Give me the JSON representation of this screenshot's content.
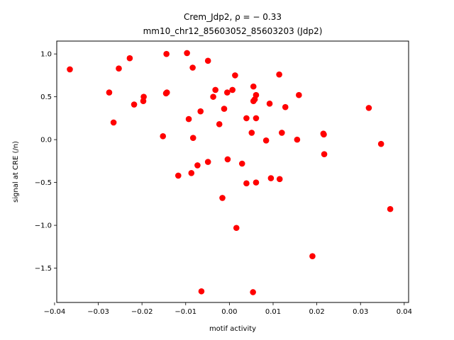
{
  "chart_data": {
    "type": "scatter",
    "title_line1": "Crem_Jdp2, ρ = − 0.33",
    "title_line2": "mm10_chr12_85603052_85603203 (Jdp2)",
    "xlabel": "motif activity",
    "ylabel": "signal at CRE (/n)",
    "xlim": [
      -0.0395,
      0.041
    ],
    "ylim": [
      -1.9,
      1.15
    ],
    "xticks": [
      -0.04,
      -0.03,
      -0.02,
      -0.01,
      0.0,
      0.01,
      0.02,
      0.03,
      0.04
    ],
    "xtick_labels": [
      "−0.04",
      "−0.03",
      "−0.02",
      "−0.01",
      "0.00",
      "0.01",
      "0.02",
      "0.03",
      "0.04"
    ],
    "yticks": [
      -1.5,
      -1.0,
      -0.5,
      0.0,
      0.5,
      1.0
    ],
    "ytick_labels": [
      "−1.5",
      "−1.0",
      "−0.5",
      "0.0",
      "0.5",
      "1.0"
    ],
    "marker_color": "#ff0000",
    "grid": false,
    "points": [
      [
        -0.0365,
        0.82
      ],
      [
        -0.0275,
        0.55
      ],
      [
        -0.0265,
        0.2
      ],
      [
        -0.0253,
        0.83
      ],
      [
        -0.0228,
        0.95
      ],
      [
        -0.0218,
        0.41
      ],
      [
        -0.0197,
        0.45
      ],
      [
        -0.0196,
        0.5
      ],
      [
        -0.0152,
        0.04
      ],
      [
        -0.0144,
        1.0
      ],
      [
        -0.0145,
        0.54
      ],
      [
        -0.0143,
        0.55
      ],
      [
        -0.0117,
        -0.42
      ],
      [
        -0.0097,
        1.01
      ],
      [
        -0.0093,
        0.24
      ],
      [
        -0.0087,
        -0.39
      ],
      [
        -0.0084,
        0.84
      ],
      [
        -0.0083,
        0.02
      ],
      [
        -0.0073,
        -0.3
      ],
      [
        -0.0066,
        0.33
      ],
      [
        -0.0064,
        -1.77
      ],
      [
        -0.0049,
        0.92
      ],
      [
        -0.0049,
        -0.26
      ],
      [
        -0.0037,
        0.5
      ],
      [
        -0.0032,
        0.58
      ],
      [
        -0.0023,
        0.18
      ],
      [
        -0.0016,
        -0.68
      ],
      [
        -0.0012,
        0.36
      ],
      [
        -0.0005,
        0.55
      ],
      [
        -0.0004,
        -0.23
      ],
      [
        0.0007,
        0.58
      ],
      [
        0.0013,
        0.75
      ],
      [
        0.0016,
        -1.03
      ],
      [
        0.0029,
        -0.28
      ],
      [
        0.0039,
        0.25
      ],
      [
        0.0039,
        -0.51
      ],
      [
        0.0051,
        0.08
      ],
      [
        0.0054,
        -1.78
      ],
      [
        0.0055,
        0.62
      ],
      [
        0.0055,
        0.45
      ],
      [
        0.0058,
        0.47
      ],
      [
        0.0061,
        0.52
      ],
      [
        0.0061,
        0.25
      ],
      [
        0.0061,
        -0.5
      ],
      [
        0.0084,
        -0.01
      ],
      [
        0.0092,
        0.42
      ],
      [
        0.0095,
        -0.45
      ],
      [
        0.0114,
        0.76
      ],
      [
        0.0115,
        -0.46
      ],
      [
        0.012,
        0.08
      ],
      [
        0.0128,
        0.38
      ],
      [
        0.0155,
        0.0
      ],
      [
        0.0159,
        0.52
      ],
      [
        0.019,
        -1.36
      ],
      [
        0.0215,
        0.07
      ],
      [
        0.0216,
        0.06
      ],
      [
        0.0217,
        -0.17
      ],
      [
        0.0319,
        0.37
      ],
      [
        0.0347,
        -0.05
      ],
      [
        0.0368,
        -0.81
      ]
    ]
  }
}
